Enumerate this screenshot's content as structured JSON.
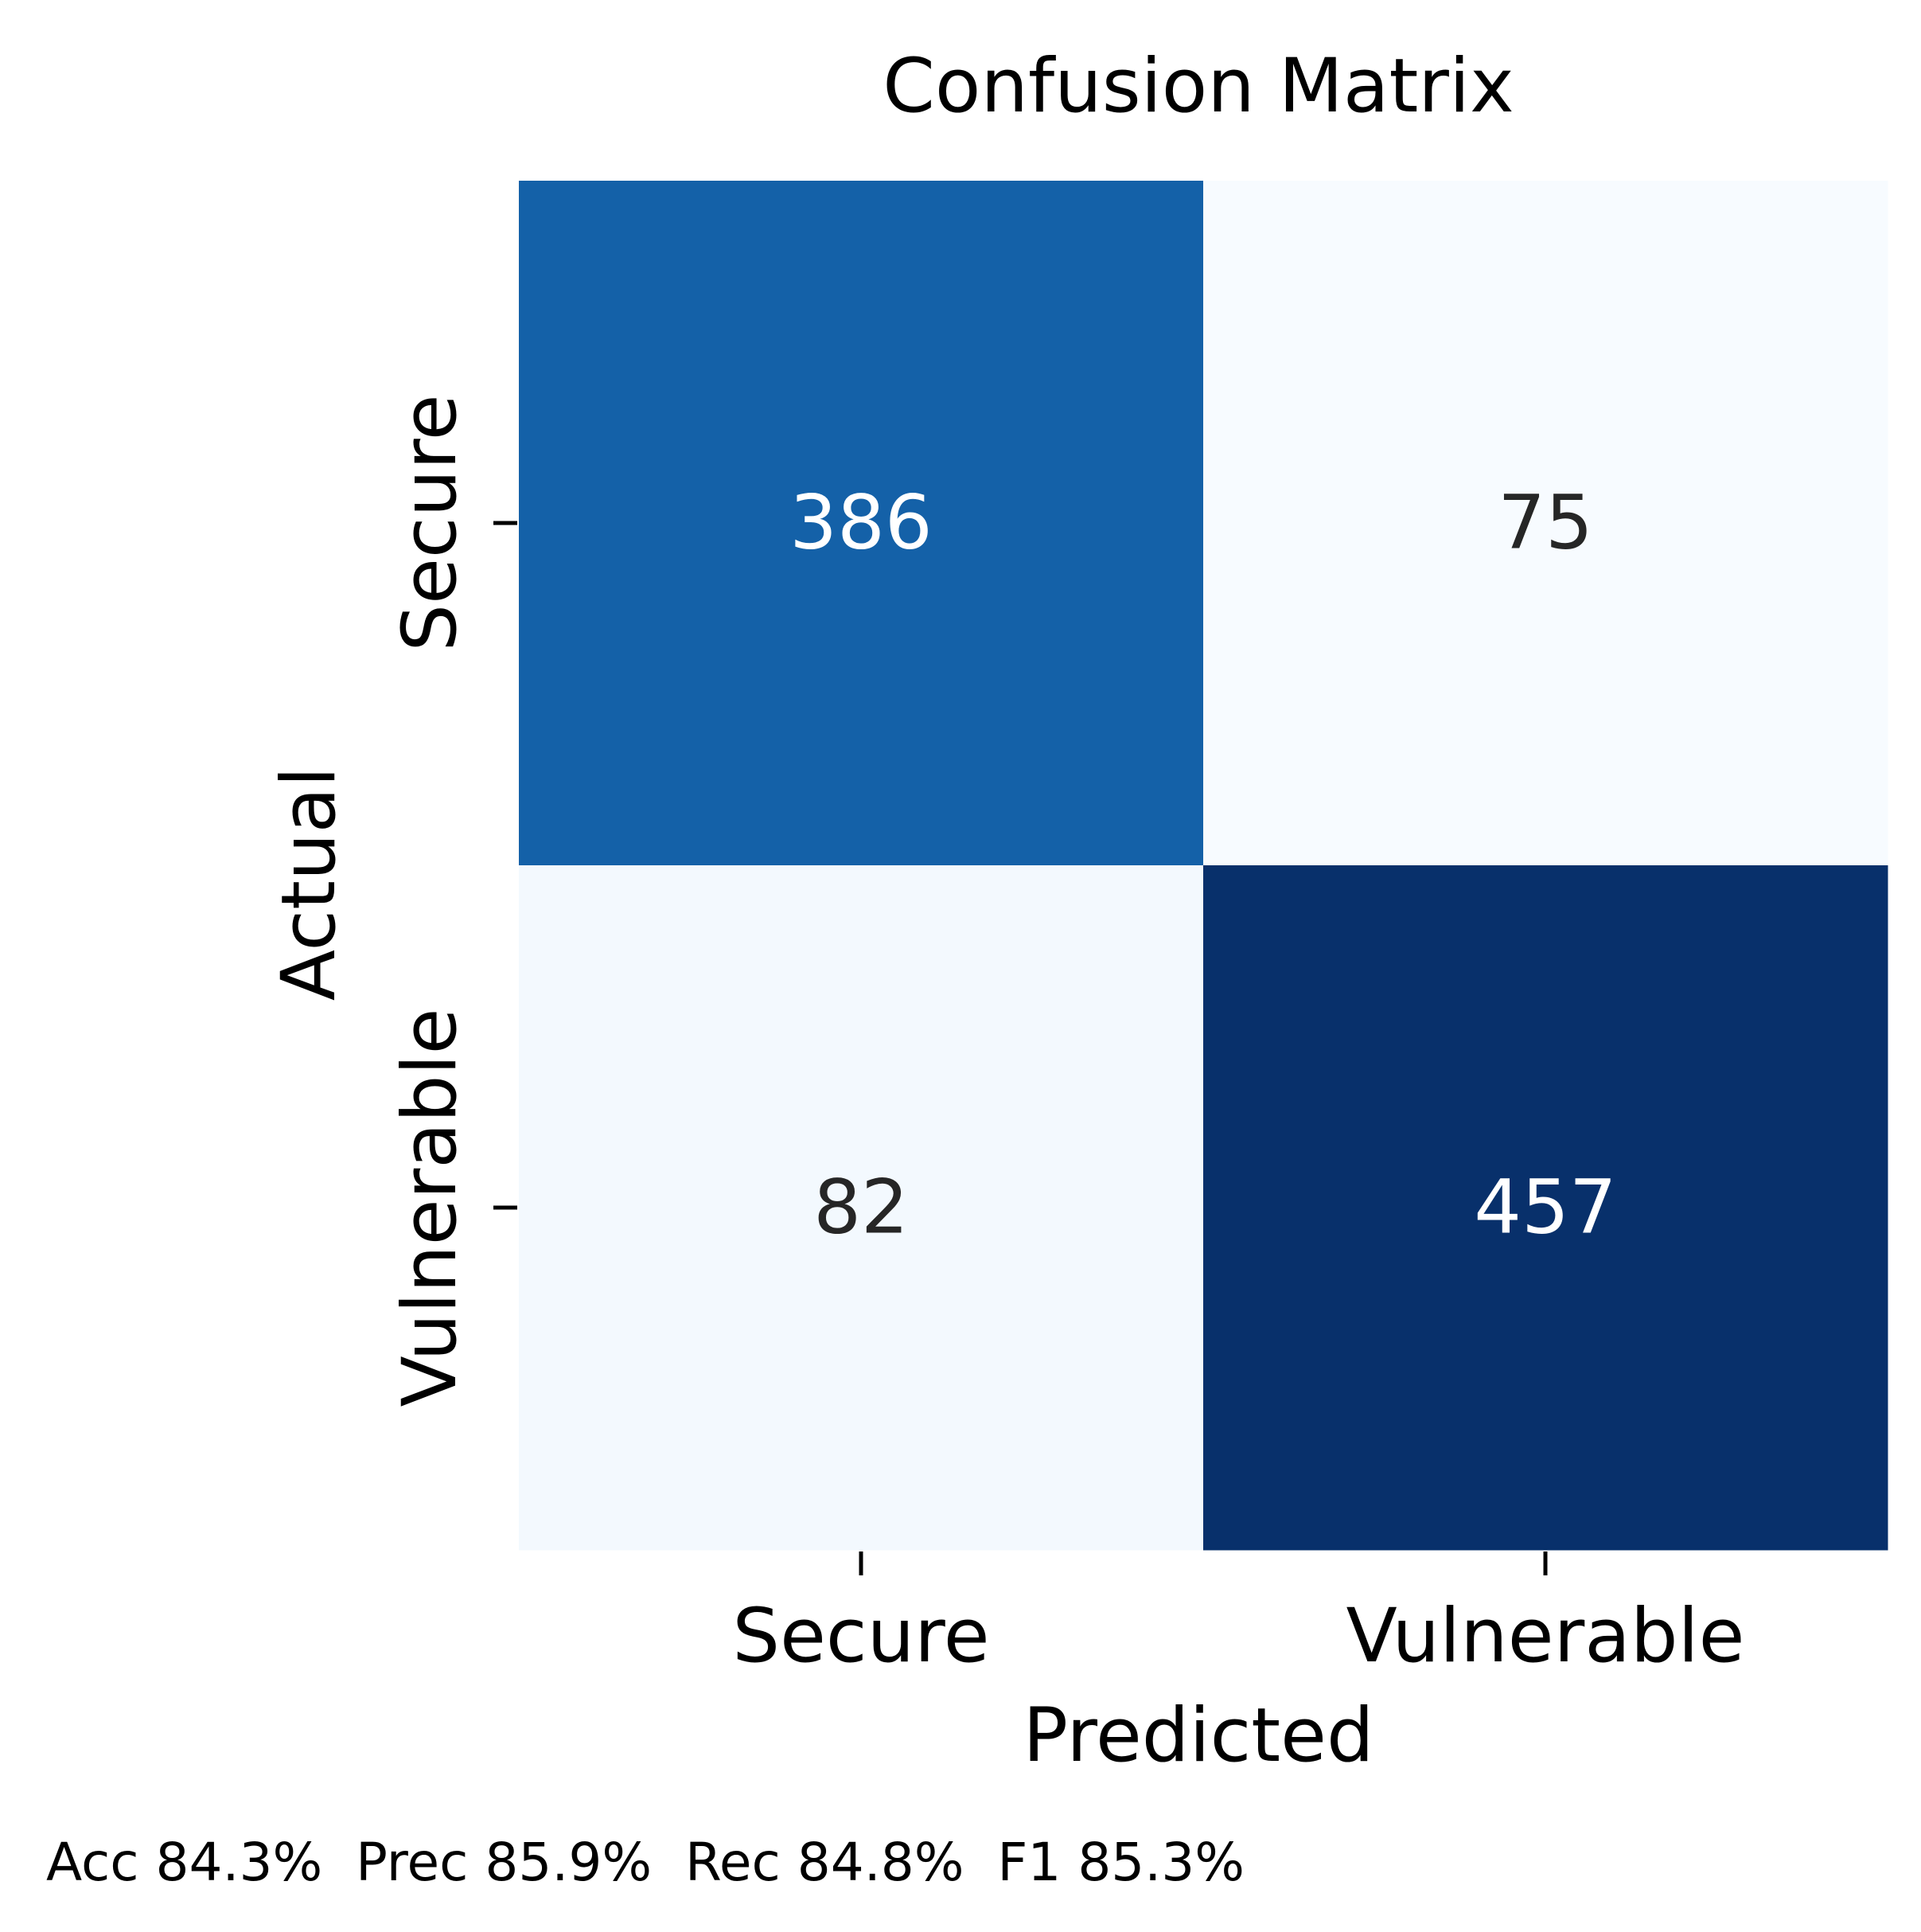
{
  "chart_data": {
    "type": "heatmap",
    "title": "Confusion Matrix",
    "xlabel": "Predicted",
    "ylabel": "Actual",
    "x_categories": [
      "Secure",
      "Vulnerable"
    ],
    "y_categories": [
      "Secure",
      "Vulnerable"
    ],
    "values": [
      [
        386,
        75
      ],
      [
        82,
        457
      ]
    ],
    "colormap": "Blues",
    "colorbar": false,
    "grid": false
  },
  "colors": {
    "low": "#f5f9fe",
    "high": "#08306b"
  },
  "footer": {
    "metrics": "Acc 84.3%  Prec 85.9%  Rec 84.8%  F1 85.3%"
  }
}
